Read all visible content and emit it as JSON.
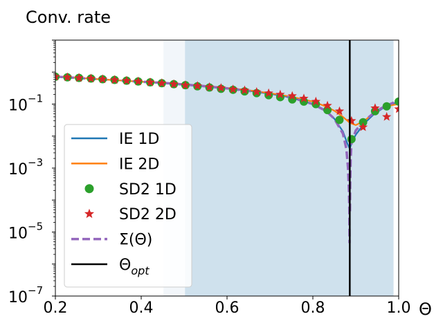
{
  "chart_data": {
    "type": "line",
    "title": "Conv. rate",
    "xlabel": "Θ",
    "ylabel": "",
    "xlim": [
      0.2,
      1.0
    ],
    "ylim_log10": [
      -7,
      1
    ],
    "yscale": "log",
    "x_ticks": [
      0.2,
      0.4,
      0.6,
      0.8,
      1.0
    ],
    "x_tick_labels": [
      "0.2",
      "0.4",
      "0.6",
      "0.8",
      "1.0"
    ],
    "y_ticks_log10": [
      -7,
      -5,
      -3,
      -1
    ],
    "y_tick_labels": [
      {
        "base": "10",
        "exp": "−7"
      },
      {
        "base": "10",
        "exp": "−5"
      },
      {
        "base": "10",
        "exp": "−3"
      },
      {
        "base": "10",
        "exp": "−1"
      }
    ],
    "shaded_regions": [
      {
        "x0": 0.452,
        "x1": 0.502,
        "color": "#f2f6fa"
      },
      {
        "x0": 0.502,
        "x1": 0.988,
        "color": "#cfe1ed"
      }
    ],
    "vline": {
      "x": 0.886,
      "color": "#000000"
    },
    "legend_position": "lower-left",
    "series": [
      {
        "name": "IE 1D",
        "style": "line",
        "color": "#1f77b4",
        "x": [
          0.2,
          0.25,
          0.3,
          0.35,
          0.4,
          0.45,
          0.5,
          0.55,
          0.6,
          0.65,
          0.7,
          0.75,
          0.8,
          0.83,
          0.85,
          0.87,
          0.88,
          0.886,
          0.89,
          0.9,
          0.92,
          0.94,
          0.96,
          0.98,
          1.0
        ],
        "y": [
          0.72,
          0.66,
          0.6,
          0.55,
          0.5,
          0.46,
          0.41,
          0.36,
          0.31,
          0.26,
          0.21,
          0.16,
          0.1,
          0.062,
          0.035,
          0.014,
          0.006,
          0.004,
          0.006,
          0.011,
          0.025,
          0.045,
          0.07,
          0.095,
          0.12
        ]
      },
      {
        "name": "IE 2D",
        "style": "line",
        "color": "#ff7f0e",
        "x": [
          0.2,
          0.25,
          0.3,
          0.35,
          0.4,
          0.45,
          0.5,
          0.55,
          0.6,
          0.65,
          0.7,
          0.75,
          0.8,
          0.83,
          0.85,
          0.87,
          0.886,
          0.9,
          0.92,
          0.94,
          0.96,
          0.98,
          1.0
        ],
        "y": [
          0.72,
          0.66,
          0.6,
          0.55,
          0.5,
          0.46,
          0.42,
          0.37,
          0.32,
          0.27,
          0.22,
          0.17,
          0.12,
          0.085,
          0.062,
          0.04,
          0.026,
          0.022,
          0.03,
          0.05,
          0.075,
          0.09,
          0.1
        ]
      },
      {
        "name": "SD2 1D",
        "style": "circle",
        "color": "#2ca02c",
        "x": [
          0.2,
          0.228,
          0.255,
          0.283,
          0.31,
          0.338,
          0.366,
          0.393,
          0.421,
          0.448,
          0.476,
          0.503,
          0.531,
          0.559,
          0.586,
          0.614,
          0.641,
          0.669,
          0.697,
          0.724,
          0.752,
          0.779,
          0.807,
          0.834,
          0.862,
          0.89,
          0.917,
          0.945,
          0.972,
          1.0
        ],
        "y": [
          0.72,
          0.69,
          0.66,
          0.63,
          0.6,
          0.57,
          0.54,
          0.51,
          0.48,
          0.45,
          0.42,
          0.39,
          0.36,
          0.33,
          0.3,
          0.28,
          0.25,
          0.22,
          0.19,
          0.165,
          0.14,
          0.12,
          0.1,
          0.065,
          0.032,
          0.008,
          0.027,
          0.06,
          0.085,
          0.12
        ]
      },
      {
        "name": "SD2 2D",
        "style": "star",
        "color": "#d62728",
        "x": [
          0.2,
          0.228,
          0.255,
          0.283,
          0.31,
          0.338,
          0.366,
          0.393,
          0.421,
          0.448,
          0.476,
          0.503,
          0.531,
          0.559,
          0.586,
          0.614,
          0.641,
          0.669,
          0.697,
          0.724,
          0.752,
          0.779,
          0.807,
          0.834,
          0.862,
          0.89,
          0.917,
          0.945,
          0.972,
          1.0
        ],
        "y": [
          0.72,
          0.69,
          0.66,
          0.63,
          0.6,
          0.57,
          0.54,
          0.51,
          0.48,
          0.45,
          0.42,
          0.39,
          0.37,
          0.34,
          0.32,
          0.29,
          0.27,
          0.24,
          0.22,
          0.2,
          0.18,
          0.15,
          0.12,
          0.09,
          0.06,
          0.03,
          0.019,
          0.075,
          0.04,
          0.07
        ]
      },
      {
        "name": "Σ(Θ)",
        "style": "dashed",
        "color": "#9467bd",
        "x": [
          0.2,
          0.25,
          0.3,
          0.35,
          0.4,
          0.45,
          0.5,
          0.55,
          0.6,
          0.65,
          0.7,
          0.75,
          0.8,
          0.83,
          0.85,
          0.87,
          0.878,
          0.882,
          0.884,
          0.885,
          0.8855
        ],
        "y": [
          0.72,
          0.66,
          0.6,
          0.55,
          0.5,
          0.46,
          0.41,
          0.36,
          0.31,
          0.26,
          0.21,
          0.16,
          0.1,
          0.062,
          0.035,
          0.012,
          0.004,
          0.001,
          0.0002,
          5e-05,
          4.5e-06
        ]
      },
      {
        "name": "Σ(Θ)",
        "style": "dashed",
        "color": "#9467bd",
        "legend": false,
        "x": [
          0.8865,
          0.887,
          0.888,
          0.89,
          0.9,
          0.92,
          0.94,
          0.96,
          0.98,
          1.0
        ],
        "y": [
          4.5e-05,
          0.0003,
          0.002,
          0.006,
          0.015,
          0.03,
          0.05,
          0.075,
          0.1,
          0.13
        ]
      }
    ],
    "legend": [
      {
        "label": "IE 1D",
        "style": "line",
        "color": "#1f77b4"
      },
      {
        "label": "IE 2D",
        "style": "line",
        "color": "#ff7f0e"
      },
      {
        "label": "SD2 1D",
        "style": "circle",
        "color": "#2ca02c"
      },
      {
        "label": "SD2 2D",
        "style": "star",
        "color": "#d62728"
      },
      {
        "label": "Σ(Θ)",
        "style": "dashed",
        "color": "#9467bd"
      },
      {
        "label_base": "Θ",
        "label_sub": "opt",
        "style": "line",
        "color": "#000000"
      }
    ]
  }
}
